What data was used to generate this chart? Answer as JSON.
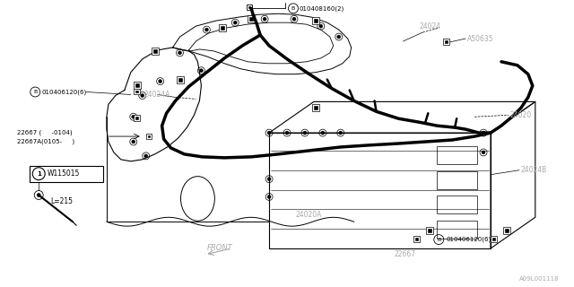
{
  "bg_color": "#ffffff",
  "lc": "#000000",
  "gray": "#aaaaaa",
  "labels": {
    "top_bolt": "B○010408160(2)",
    "part_24024": "24024",
    "part_A50635": "A50635",
    "part_24020": "24020",
    "left_bolt": "B○010406120(6)",
    "part_24024A": "24024A",
    "left_22667": "22667 (     -0104)",
    "left_22667A": "22667A(0105-     )",
    "part_24020A": "24020A",
    "part_24024B": "24024B",
    "bot_bolt": "B○010406120(6)",
    "bot_22667": "22667",
    "legend_label": "W115015",
    "legend_l": "L=215",
    "front": "FRONT",
    "ref": "A09L001118"
  },
  "figsize": [
    6.4,
    3.2
  ],
  "dpi": 100
}
